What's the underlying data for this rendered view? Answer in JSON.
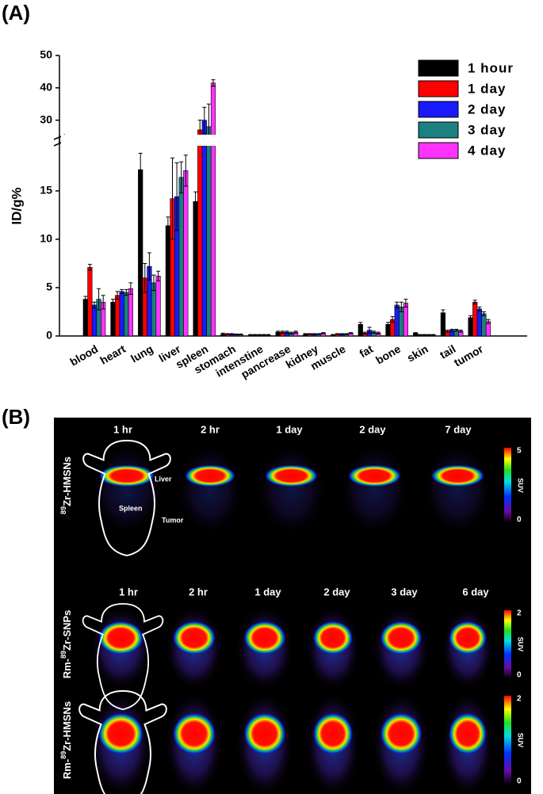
{
  "chart_data": {
    "type": "bar",
    "y_label": "ID/g%",
    "categories": [
      "blood",
      "heart",
      "lung",
      "liver",
      "spleen",
      "stomach",
      "intenstine",
      "pancrease",
      "kidney",
      "muscle",
      "fat",
      "bone",
      "skin",
      "tail",
      "tumor"
    ],
    "series": [
      {
        "name": "1 hour",
        "color": "#000000",
        "values": [
          3.8,
          3.5,
          17.2,
          11.4,
          13.9,
          0.2,
          0.1,
          0.4,
          0.2,
          0.1,
          1.2,
          1.2,
          0.3,
          2.4,
          1.9
        ],
        "errors": [
          0.3,
          0.3,
          1.7,
          0.9,
          1.0,
          0.1,
          0.05,
          0.1,
          0.05,
          0.05,
          0.2,
          0.2,
          0.05,
          0.3,
          0.2
        ]
      },
      {
        "name": "1 day",
        "color": "#ff0000",
        "values": [
          7.1,
          4.2,
          6.0,
          14.2,
          27.0,
          0.2,
          0.1,
          0.4,
          0.2,
          0.2,
          0.3,
          1.7,
          0.1,
          0.5,
          3.5
        ],
        "errors": [
          0.3,
          0.4,
          1.5,
          4.2,
          3.0,
          0.05,
          0.05,
          0.1,
          0.05,
          0.05,
          0.1,
          0.3,
          0.05,
          0.1,
          0.2
        ]
      },
      {
        "name": "2 day",
        "color": "#1a1aff",
        "values": [
          3.2,
          4.6,
          7.2,
          14.4,
          30.0,
          0.2,
          0.1,
          0.4,
          0.2,
          0.2,
          0.6,
          3.2,
          0.1,
          0.6,
          2.8
        ],
        "errors": [
          0.3,
          0.2,
          1.4,
          3.5,
          4.0,
          0.05,
          0.05,
          0.1,
          0.05,
          0.05,
          0.3,
          0.3,
          0.05,
          0.1,
          0.2
        ]
      },
      {
        "name": "3 day",
        "color": "#1a8080",
        "values": [
          3.8,
          4.5,
          5.5,
          16.4,
          28.0,
          0.15,
          0.1,
          0.3,
          0.2,
          0.2,
          0.4,
          3.0,
          0.1,
          0.6,
          2.3
        ],
        "errors": [
          1.1,
          0.3,
          0.8,
          1.6,
          7.0,
          0.05,
          0.05,
          0.1,
          0.05,
          0.05,
          0.1,
          0.5,
          0.05,
          0.1,
          0.2
        ]
      },
      {
        "name": "4 day",
        "color": "#ff33ff",
        "values": [
          3.5,
          4.9,
          6.2,
          17.1,
          41.5,
          0.15,
          0.1,
          0.4,
          0.3,
          0.3,
          0.3,
          3.4,
          0.1,
          0.5,
          1.5
        ],
        "errors": [
          0.7,
          0.6,
          0.5,
          1.6,
          1.0,
          0.05,
          0.05,
          0.1,
          0.05,
          0.05,
          0.1,
          0.4,
          0.05,
          0.1,
          0.2
        ]
      }
    ],
    "ylim": [
      0,
      50
    ],
    "axis_break": [
      19.5,
      26
    ],
    "yticks": [
      0,
      5,
      10,
      15,
      30,
      40,
      50
    ],
    "legend": "top-right"
  },
  "panel_labels": [
    "(A)",
    "(B)"
  ],
  "panel_b": {
    "rows": [
      {
        "label": {
          "before": "",
          "sup": "89",
          "after": "Zr-HMSNs"
        },
        "columns": [
          "1 hr",
          "2 hr",
          "1 day",
          "2 day",
          "7 day"
        ],
        "colorbar": {
          "max": "5",
          "unit": "SUV",
          "min": "0"
        }
      },
      {
        "label": {
          "before": "Rm-",
          "sup": "89",
          "after": "Zr-SNPs"
        },
        "columns": [
          "1 hr",
          "2 hr",
          "1 day",
          "2 day",
          "3 day",
          "6 day"
        ],
        "colorbar": {
          "max": "2",
          "unit": "SUV",
          "min": "0"
        }
      },
      {
        "label": {
          "before": "Rm-",
          "sup": "89",
          "after": "Zr-HMSNs"
        },
        "columns": [],
        "colorbar": {
          "max": "2",
          "unit": "SUV",
          "min": "0"
        }
      }
    ],
    "annotations": [
      "Liver",
      "Spleen",
      "Tumor"
    ]
  }
}
